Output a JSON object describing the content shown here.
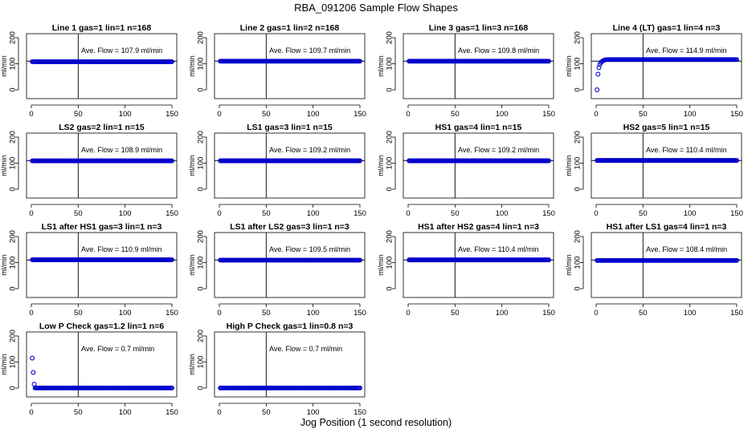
{
  "figure": {
    "title": "RBA_091206  Sample Flow Shapes",
    "xlabel": "Jog Position (1 second resolution)"
  },
  "chart_data": [
    {
      "type": "scatter",
      "title": "Line 1 gas=1 lin=1 n=168",
      "ylabel": "ml/min",
      "xlim": [
        0,
        150
      ],
      "ylim": [
        0,
        200
      ],
      "xticks": [
        0,
        50,
        100,
        150
      ],
      "yticks": [
        0,
        100,
        200
      ],
      "vline_x": 50,
      "hline_y": 110,
      "annotation": "Ave. Flow =  107.9  ml/min",
      "shape": "flat",
      "flat_y": 107.9
    },
    {
      "type": "scatter",
      "title": "Line 2 gas=1 lin=2 n=168",
      "ylabel": "ml/min",
      "xlim": [
        0,
        150
      ],
      "ylim": [
        0,
        200
      ],
      "xticks": [
        0,
        50,
        100,
        150
      ],
      "yticks": [
        0,
        100,
        200
      ],
      "vline_x": 50,
      "hline_y": 110,
      "annotation": "Ave. Flow =  109.7  ml/min",
      "shape": "flat",
      "flat_y": 109.7
    },
    {
      "type": "scatter",
      "title": "Line 3 gas=1 lin=3 n=168",
      "ylabel": "ml/min",
      "xlim": [
        0,
        150
      ],
      "ylim": [
        0,
        200
      ],
      "xticks": [
        0,
        50,
        100,
        150
      ],
      "yticks": [
        0,
        100,
        200
      ],
      "vline_x": 50,
      "hline_y": 110,
      "annotation": "Ave. Flow =  109.8  ml/min",
      "shape": "flat",
      "flat_y": 109.8
    },
    {
      "type": "scatter",
      "title": "Line 4 (LT) gas=1 lin=4 n=3",
      "ylabel": "ml/min",
      "xlim": [
        0,
        150
      ],
      "ylim": [
        0,
        200
      ],
      "xticks": [
        0,
        50,
        100,
        150
      ],
      "yticks": [
        0,
        100,
        200
      ],
      "vline_x": 50,
      "hline_y": 110,
      "annotation": "Ave. Flow =  114.9  ml/min",
      "shape": "rise",
      "flat_y": 116,
      "start_points": [
        [
          1,
          0
        ],
        [
          2,
          60
        ],
        [
          3,
          85
        ],
        [
          4,
          97
        ],
        [
          5,
          104
        ],
        [
          6,
          108
        ],
        [
          7,
          111
        ],
        [
          8,
          113
        ],
        [
          9,
          114
        ],
        [
          10,
          115
        ]
      ]
    },
    {
      "type": "scatter",
      "title": "LS2 gas=2 lin=1 n=15",
      "ylabel": "ml/min",
      "xlim": [
        0,
        150
      ],
      "ylim": [
        0,
        200
      ],
      "xticks": [
        0,
        50,
        100,
        150
      ],
      "yticks": [
        0,
        100,
        200
      ],
      "vline_x": 50,
      "hline_y": 110,
      "annotation": "Ave. Flow =  108.9  ml/min",
      "shape": "flat",
      "flat_y": 108.9
    },
    {
      "type": "scatter",
      "title": "LS1 gas=3 lin=1 n=15",
      "ylabel": "ml/min",
      "xlim": [
        0,
        150
      ],
      "ylim": [
        0,
        200
      ],
      "xticks": [
        0,
        50,
        100,
        150
      ],
      "yticks": [
        0,
        100,
        200
      ],
      "vline_x": 50,
      "hline_y": 110,
      "annotation": "Ave. Flow =  109.2  ml/min",
      "shape": "flat",
      "flat_y": 109.2
    },
    {
      "type": "scatter",
      "title": "HS1 gas=4 lin=1 n=15",
      "ylabel": "ml/min",
      "xlim": [
        0,
        150
      ],
      "ylim": [
        0,
        200
      ],
      "xticks": [
        0,
        50,
        100,
        150
      ],
      "yticks": [
        0,
        100,
        200
      ],
      "vline_x": 50,
      "hline_y": 110,
      "annotation": "Ave. Flow =  109.2  ml/min",
      "shape": "flat",
      "flat_y": 109.2
    },
    {
      "type": "scatter",
      "title": "HS2 gas=5 lin=1 n=15",
      "ylabel": "ml/min",
      "xlim": [
        0,
        150
      ],
      "ylim": [
        0,
        200
      ],
      "xticks": [
        0,
        50,
        100,
        150
      ],
      "yticks": [
        0,
        100,
        200
      ],
      "vline_x": 50,
      "hline_y": 110,
      "annotation": "Ave. Flow =  110.4  ml/min",
      "shape": "flat",
      "flat_y": 110.4
    },
    {
      "type": "scatter",
      "title": "LS1 after HS1 gas=3 lin=1 n=3",
      "ylabel": "ml/min",
      "xlim": [
        0,
        150
      ],
      "ylim": [
        0,
        200
      ],
      "xticks": [
        0,
        50,
        100,
        150
      ],
      "yticks": [
        0,
        100,
        200
      ],
      "vline_x": 50,
      "hline_y": 110,
      "annotation": "Ave. Flow =  110.9  ml/min",
      "shape": "flat",
      "flat_y": 110.9
    },
    {
      "type": "scatter",
      "title": "LS1 after LS2 gas=3 lin=1 n=3",
      "ylabel": "ml/min",
      "xlim": [
        0,
        150
      ],
      "ylim": [
        0,
        200
      ],
      "xticks": [
        0,
        50,
        100,
        150
      ],
      "yticks": [
        0,
        100,
        200
      ],
      "vline_x": 50,
      "hline_y": 110,
      "annotation": "Ave. Flow =  109.5  ml/min",
      "shape": "flat",
      "flat_y": 109.5
    },
    {
      "type": "scatter",
      "title": "HS1 after HS2 gas=4 lin=1 n=3",
      "ylabel": "ml/min",
      "xlim": [
        0,
        150
      ],
      "ylim": [
        0,
        200
      ],
      "xticks": [
        0,
        50,
        100,
        150
      ],
      "yticks": [
        0,
        100,
        200
      ],
      "vline_x": 50,
      "hline_y": 110,
      "annotation": "Ave. Flow =  110.4  ml/min",
      "shape": "flat",
      "flat_y": 110.4
    },
    {
      "type": "scatter",
      "title": "HS1 after LS1 gas=4 lin=1 n=3",
      "ylabel": "ml/min",
      "xlim": [
        0,
        150
      ],
      "ylim": [
        0,
        200
      ],
      "xticks": [
        0,
        50,
        100,
        150
      ],
      "yticks": [
        0,
        100,
        200
      ],
      "vline_x": 50,
      "hline_y": 110,
      "annotation": "Ave. Flow =  108.4  ml/min",
      "shape": "flat",
      "flat_y": 108.4
    },
    {
      "type": "scatter",
      "title": "Low P Check gas=1.2 lin=1 n=6",
      "ylabel": "ml/min",
      "xlim": [
        0,
        150
      ],
      "ylim": [
        0,
        200
      ],
      "xticks": [
        0,
        50,
        100,
        150
      ],
      "yticks": [
        0,
        100,
        200
      ],
      "vline_x": 50,
      "hline_y": null,
      "annotation": "Ave. Flow =  0.7  ml/min",
      "shape": "spike",
      "flat_y": 0.7,
      "start_points": [
        [
          1,
          115
        ],
        [
          2,
          60
        ],
        [
          3,
          15
        ]
      ]
    },
    {
      "type": "scatter",
      "title": "High P Check gas=1 lin=0.8 n=3",
      "ylabel": "ml/min",
      "xlim": [
        0,
        150
      ],
      "ylim": [
        0,
        200
      ],
      "xticks": [
        0,
        50,
        100,
        150
      ],
      "yticks": [
        0,
        100,
        200
      ],
      "vline_x": 50,
      "hline_y": null,
      "annotation": "Ave. Flow =  0.7  ml/min",
      "shape": "flat",
      "flat_y": 0.7
    }
  ]
}
